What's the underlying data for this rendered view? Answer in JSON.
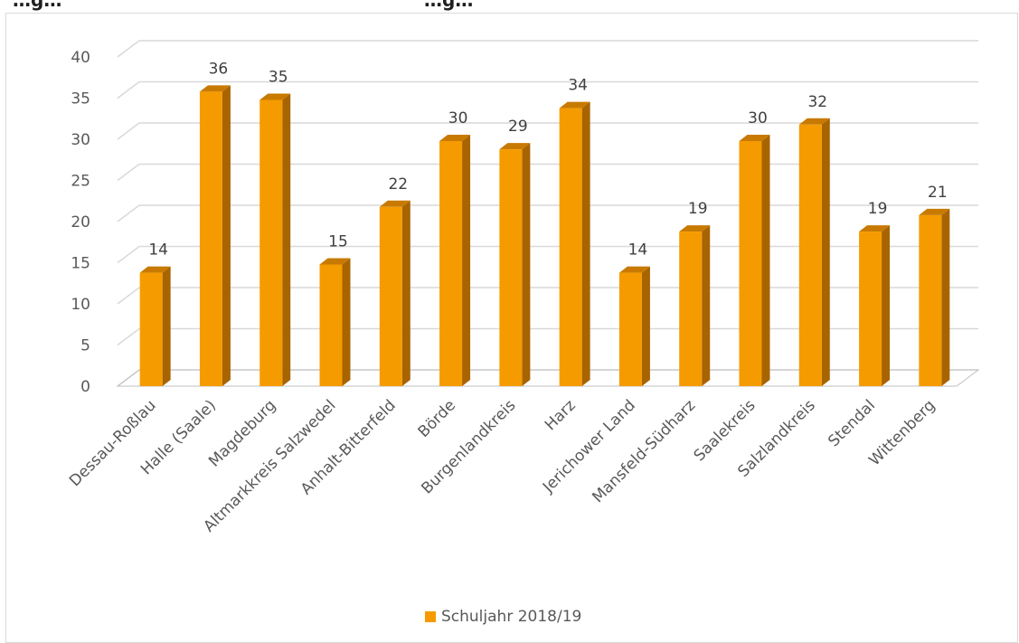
{
  "page": {
    "cut_title": "…g…                                                     …g…"
  },
  "colors": {
    "bar_front": "#F59B00",
    "bar_side": "#A86400",
    "bar_top": "#C87A00",
    "grid": "#d9d9d9",
    "floor": "#bfbfbf"
  },
  "chart_data": {
    "type": "bar",
    "title": "",
    "xlabel": "",
    "ylabel": "",
    "ylim": [
      0,
      40
    ],
    "yticks": [
      0,
      5,
      10,
      15,
      20,
      25,
      30,
      35,
      40
    ],
    "grid": true,
    "legend_position": "bottom",
    "categories": [
      "Dessau-Roßlau",
      "Halle (Saale)",
      "Magdeburg",
      "Altmarkkreis Salzwedel",
      "Anhalt-Bitterfeld",
      "Börde",
      "Burgenlandkreis",
      "Harz",
      "Jerichower Land",
      "Mansfeld-Südharz",
      "Saalekreis",
      "Salzlandkreis",
      "Stendal",
      "Wittenberg"
    ],
    "series": [
      {
        "name": "Schuljahr 2018/19",
        "values": [
          14,
          36,
          35,
          15,
          22,
          30,
          29,
          34,
          14,
          19,
          30,
          32,
          19,
          21
        ]
      }
    ]
  }
}
